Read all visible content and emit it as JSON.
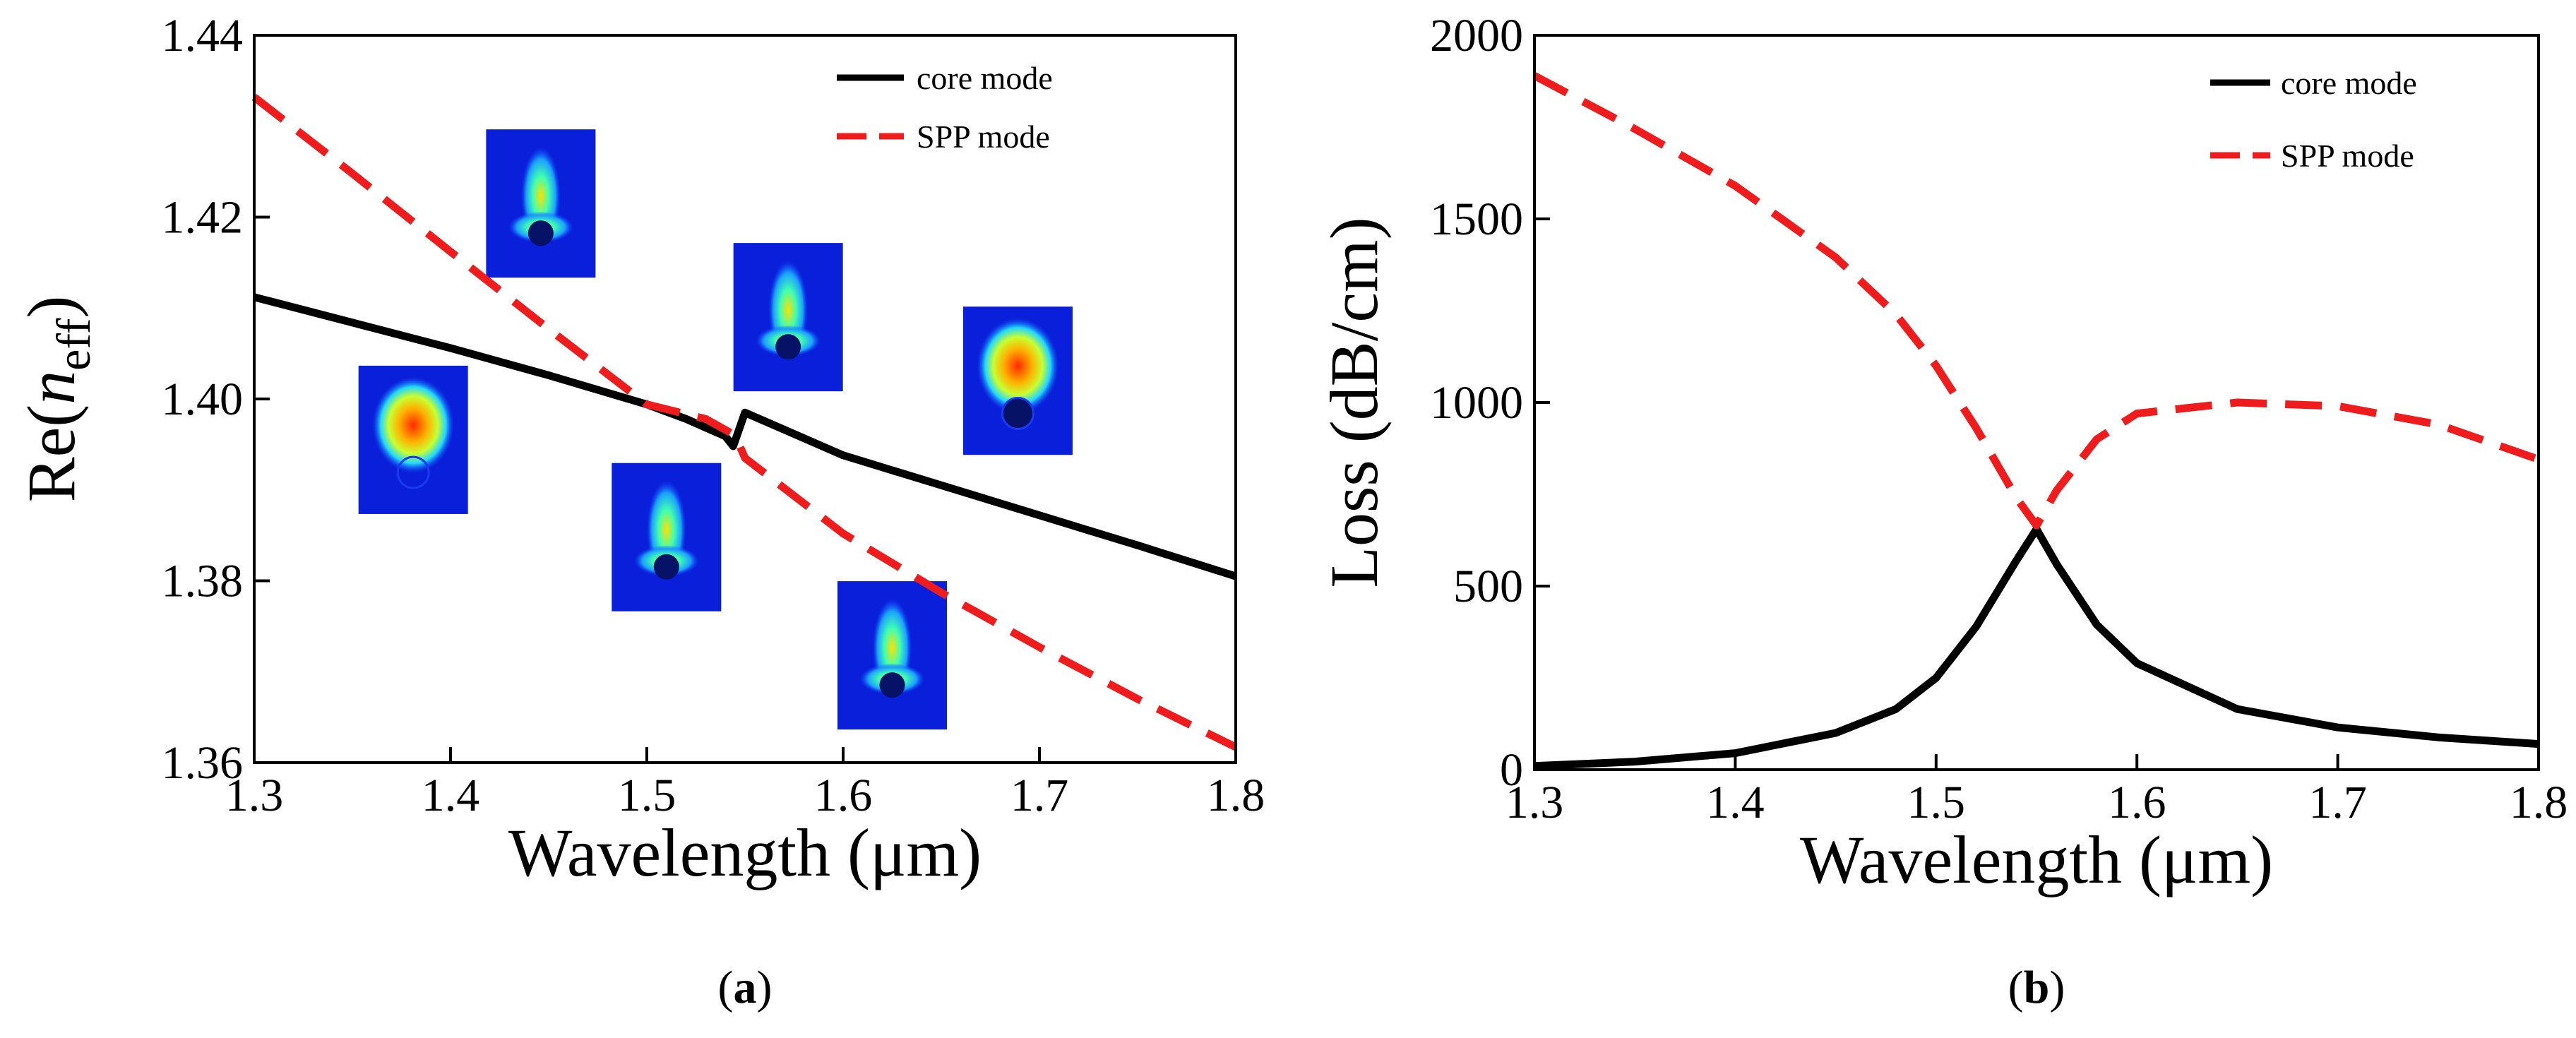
{
  "chart_data": [
    {
      "id": "a",
      "type": "line",
      "caption": "a",
      "xlabel": "Wavelength (μm)",
      "ylabel": "Re(n_eff)",
      "ylabel_parts": {
        "prefix": "Re(",
        "var": "n",
        "sub": "eff",
        "suffix": ")"
      },
      "xlim": [
        1.3,
        1.8
      ],
      "ylim": [
        1.36,
        1.44
      ],
      "xticks": [
        "1.3",
        "1.4",
        "1.5",
        "1.6",
        "1.7",
        "1.8"
      ],
      "yticks": [
        "1.36",
        "1.38",
        "1.40",
        "1.42",
        "1.44"
      ],
      "legend": {
        "position": "top-right",
        "entries": [
          "core mode",
          "SPP mode"
        ]
      },
      "series": [
        {
          "name": "core mode",
          "style": "solid",
          "color": "#000000",
          "x": [
            1.3,
            1.35,
            1.4,
            1.45,
            1.5,
            1.52,
            1.54,
            1.544,
            1.55,
            1.6,
            1.65,
            1.7,
            1.75,
            1.8
          ],
          "y": [
            1.4112,
            1.4084,
            1.4056,
            1.4026,
            1.3994,
            1.3978,
            1.3959,
            1.3948,
            1.3985,
            1.3938,
            1.3905,
            1.3872,
            1.3839,
            1.3805
          ]
        },
        {
          "name": "SPP mode",
          "style": "dashed",
          "color": "#ee1c1c",
          "x": [
            1.3,
            1.35,
            1.4,
            1.45,
            1.5,
            1.53,
            1.545,
            1.55,
            1.6,
            1.65,
            1.7,
            1.75,
            1.8
          ],
          "y": [
            1.4332,
            1.4248,
            1.4162,
            1.4077,
            1.3994,
            1.3978,
            1.396,
            1.3935,
            1.3852,
            1.3787,
            1.3727,
            1.367,
            1.3617
          ]
        }
      ],
      "field_insets": [
        {
          "name": "mode-profile-inset-1",
          "x": 1.381,
          "y": 1.3955,
          "spot": "upper-red"
        },
        {
          "name": "mode-profile-inset-2",
          "x": 1.446,
          "y": 1.4215,
          "spot": "lower-narrow"
        },
        {
          "name": "mode-profile-inset-3",
          "x": 1.51,
          "y": 1.3848,
          "spot": "lower-narrow"
        },
        {
          "name": "mode-profile-inset-4",
          "x": 1.572,
          "y": 1.409,
          "spot": "lower-narrow"
        },
        {
          "name": "mode-profile-inset-5",
          "x": 1.625,
          "y": 1.3718,
          "spot": "lower-narrow"
        },
        {
          "name": "mode-profile-inset-6",
          "x": 1.689,
          "y": 1.402,
          "spot": "upper-red-lower-dark"
        }
      ]
    },
    {
      "id": "b",
      "type": "line",
      "caption": "b",
      "xlabel": "Wavelength (μm)",
      "ylabel": "Loss (dB/cm)",
      "xlim": [
        1.3,
        1.8
      ],
      "ylim": [
        0,
        2000
      ],
      "xticks": [
        "1.3",
        "1.4",
        "1.5",
        "1.6",
        "1.7",
        "1.8"
      ],
      "yticks": [
        "0",
        "500",
        "1000",
        "1500",
        "2000"
      ],
      "legend": {
        "position": "top-right",
        "entries": [
          "core mode",
          "SPP mode"
        ]
      },
      "series": [
        {
          "name": "core mode",
          "style": "solid",
          "color": "#000000",
          "x": [
            1.3,
            1.35,
            1.4,
            1.45,
            1.48,
            1.5,
            1.52,
            1.54,
            1.55,
            1.56,
            1.58,
            1.6,
            1.65,
            1.7,
            1.75,
            1.8
          ],
          "y": [
            10,
            22,
            45,
            100,
            165,
            250,
            390,
            570,
            655,
            560,
            395,
            290,
            165,
            115,
            88,
            70
          ]
        },
        {
          "name": "SPP mode",
          "style": "dashed",
          "color": "#ee1c1c",
          "x": [
            1.3,
            1.35,
            1.4,
            1.45,
            1.48,
            1.5,
            1.52,
            1.54,
            1.55,
            1.56,
            1.58,
            1.6,
            1.65,
            1.7,
            1.75,
            1.8
          ],
          "y": [
            1890,
            1745,
            1590,
            1395,
            1240,
            1100,
            930,
            740,
            665,
            760,
            900,
            970,
            1000,
            990,
            940,
            845
          ]
        }
      ]
    }
  ]
}
